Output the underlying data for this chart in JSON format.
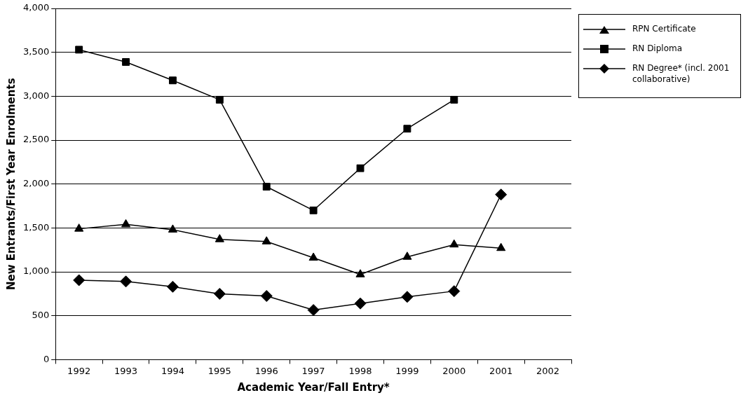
{
  "chart_data": {
    "type": "line",
    "xlabel": "Academic Year/Fall Entry*",
    "ylabel": "New Entrants/First Year Enrolments",
    "categories": [
      "1992",
      "1993",
      "1994",
      "1995",
      "1996",
      "1997",
      "1998",
      "1999",
      "2000",
      "2001",
      "2002"
    ],
    "series": [
      {
        "name": "RPN Certificate",
        "color": "#000000",
        "marker": "triangle",
        "values": [
          1490,
          1540,
          1480,
          1370,
          1345,
          1160,
          970,
          1170,
          1310,
          1270,
          null
        ]
      },
      {
        "name": "RN Diploma",
        "color": "#000000",
        "marker": "square",
        "values": [
          3530,
          3390,
          3180,
          2960,
          1970,
          1700,
          2180,
          2630,
          2960,
          null,
          null
        ]
      },
      {
        "name": "RN Degree* (incl. 2001 collaborative)",
        "color": "#000000",
        "marker": "diamond",
        "values": [
          905,
          890,
          830,
          750,
          725,
          565,
          640,
          715,
          780,
          1880,
          null
        ]
      }
    ],
    "ylim": [
      0,
      4000
    ],
    "yticks": [
      {
        "value": 0,
        "label": "0"
      },
      {
        "value": 500,
        "label": "500"
      },
      {
        "value": 1000,
        "label": "1,000"
      },
      {
        "value": 1500,
        "label": "1,500"
      },
      {
        "value": 2000,
        "label": "2,000"
      },
      {
        "value": 2500,
        "label": "2,500"
      },
      {
        "value": 3000,
        "label": "3,000"
      },
      {
        "value": 3500,
        "label": "3,500"
      },
      {
        "value": 4000,
        "label": "4,000"
      }
    ],
    "grid": "y",
    "legend": "top right",
    "line_style": "solid"
  }
}
